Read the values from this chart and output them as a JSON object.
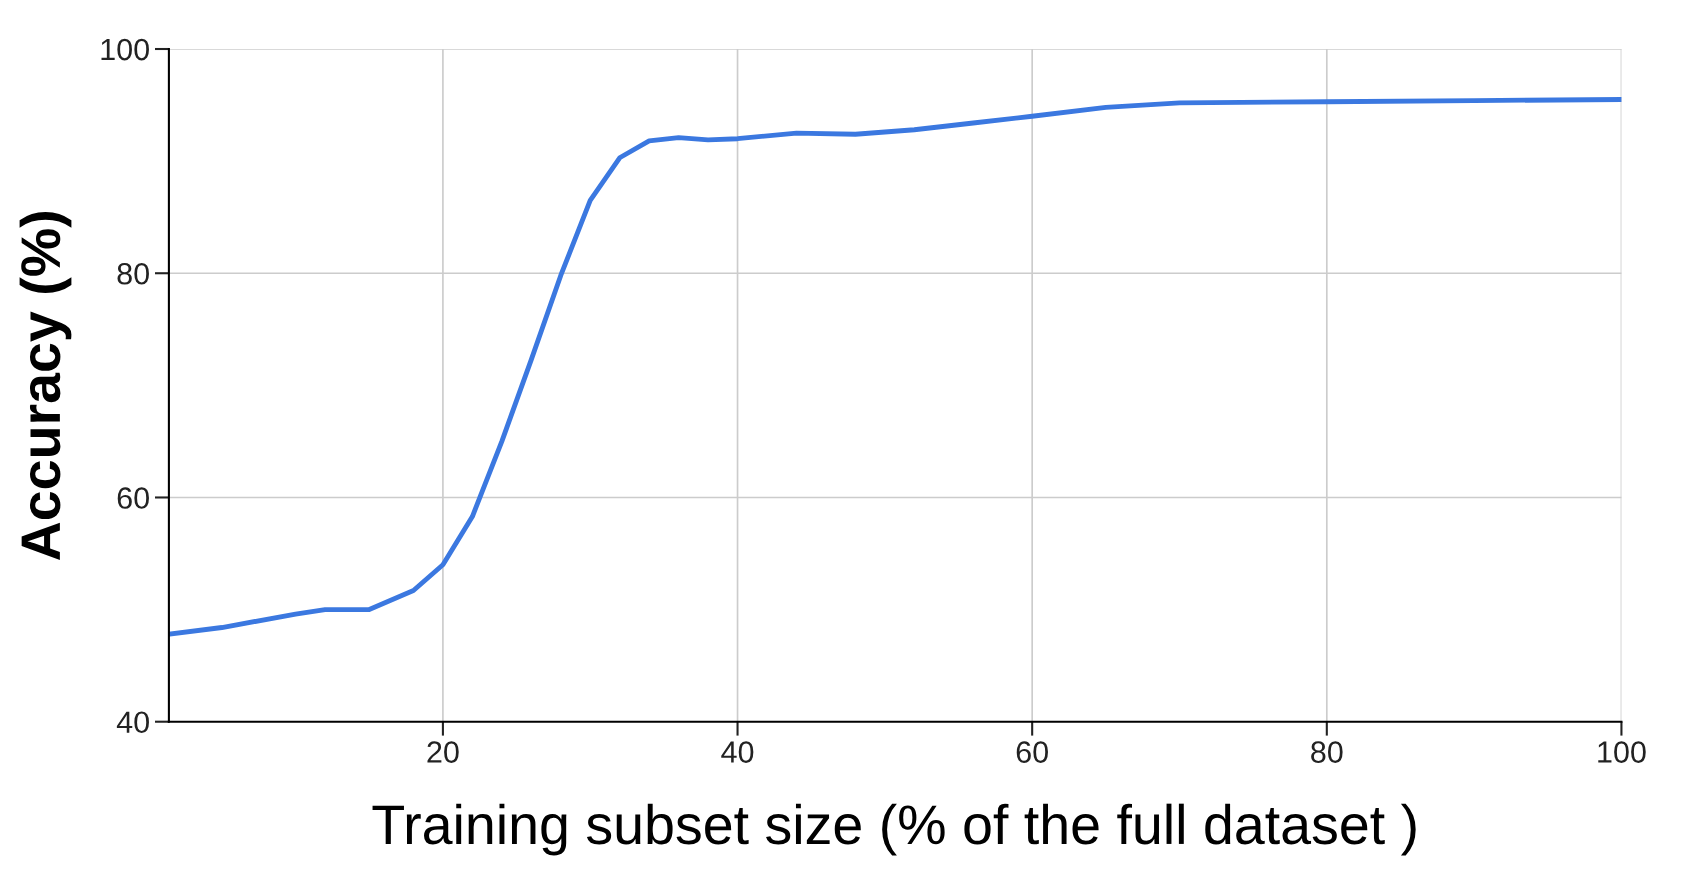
{
  "chart_data": {
    "type": "line",
    "xlabel": "Training subset size (% of the full dataset )",
    "ylabel": "Accuracy (%)",
    "xlim": [
      1.4,
      100
    ],
    "ylim": [
      40,
      100
    ],
    "xticks": [
      20,
      40,
      60,
      80,
      100
    ],
    "yticks": [
      40,
      60,
      80,
      100
    ],
    "grid": true,
    "series": [
      {
        "color": "#3b78e0",
        "x": [
          1.4,
          5,
          10,
          12,
          15,
          18,
          20,
          22,
          24,
          26,
          28,
          30,
          32,
          34,
          36,
          38,
          40,
          44,
          48,
          52,
          56,
          60,
          65,
          70,
          80,
          90,
          100
        ],
        "values": [
          47.8,
          48.4,
          49.6,
          50.0,
          50.0,
          51.7,
          54.0,
          58.3,
          65.0,
          72.3,
          79.8,
          86.5,
          90.3,
          91.8,
          92.1,
          91.9,
          92.0,
          92.5,
          92.4,
          92.8,
          93.4,
          94.0,
          94.8,
          95.2,
          95.3,
          95.4,
          95.5
        ]
      }
    ]
  }
}
